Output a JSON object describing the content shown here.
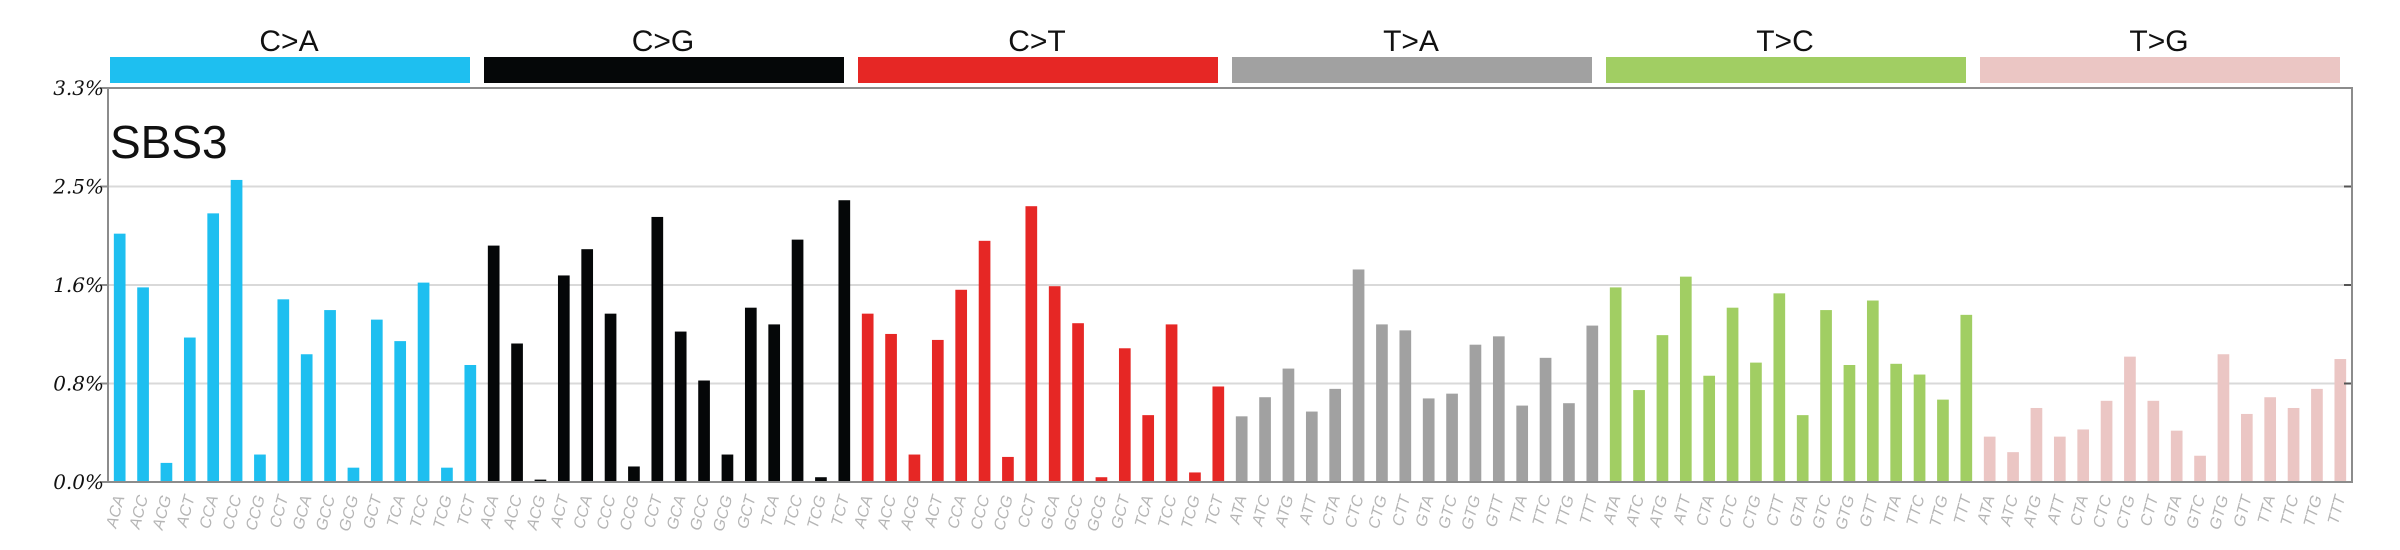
{
  "chart_data": {
    "type": "bar",
    "title": "SBS3",
    "ylim": [
      0,
      3.3
    ],
    "yticks": [
      {
        "value": 0.0,
        "label": "0.0%"
      },
      {
        "value": 0.825,
        "label": "0.8%"
      },
      {
        "value": 1.65,
        "label": "1.6%"
      },
      {
        "value": 2.475,
        "label": "2.5%"
      },
      {
        "value": 3.3,
        "label": "3.3%"
      }
    ],
    "grid": true,
    "groups": [
      {
        "name": "C>A",
        "color": "#1ebff0",
        "categories": [
          "ACA",
          "ACC",
          "ACG",
          "ACT",
          "CCA",
          "CCC",
          "CCG",
          "CCT",
          "GCA",
          "GCC",
          "GCG",
          "GCT",
          "TCA",
          "TCC",
          "TCG",
          "TCT"
        ],
        "values": [
          2.08,
          1.63,
          0.16,
          1.21,
          2.25,
          2.53,
          0.23,
          1.53,
          1.07,
          1.44,
          0.12,
          1.36,
          1.18,
          1.67,
          0.12,
          0.98
        ]
      },
      {
        "name": "C>G",
        "color": "#050708",
        "categories": [
          "ACA",
          "ACC",
          "ACG",
          "ACT",
          "CCA",
          "CCC",
          "CCG",
          "CCT",
          "GCA",
          "GCC",
          "GCG",
          "GCT",
          "TCA",
          "TCC",
          "TCG",
          "TCT"
        ],
        "values": [
          1.98,
          1.16,
          0.02,
          1.73,
          1.95,
          1.41,
          0.13,
          2.22,
          1.26,
          0.85,
          0.23,
          1.46,
          1.32,
          2.03,
          0.04,
          2.36
        ]
      },
      {
        "name": "C>T",
        "color": "#e62725",
        "categories": [
          "ACA",
          "ACC",
          "ACG",
          "ACT",
          "CCA",
          "CCC",
          "CCG",
          "CCT",
          "GCA",
          "GCC",
          "GCG",
          "GCT",
          "TCA",
          "TCC",
          "TCG",
          "TCT"
        ],
        "values": [
          1.41,
          1.24,
          0.23,
          1.19,
          1.61,
          2.02,
          0.21,
          2.31,
          1.64,
          1.33,
          0.04,
          1.12,
          0.56,
          1.32,
          0.08,
          0.8
        ]
      },
      {
        "name": "T>A",
        "color": "#a1a1a1",
        "categories": [
          "ATA",
          "ATC",
          "ATG",
          "ATT",
          "CTA",
          "CTC",
          "CTG",
          "CTT",
          "GTA",
          "GTC",
          "GTG",
          "GTT",
          "TTA",
          "TTC",
          "TTG",
          "TTT"
        ],
        "values": [
          0.55,
          0.71,
          0.95,
          0.59,
          0.78,
          1.78,
          1.32,
          1.27,
          0.7,
          0.74,
          1.15,
          1.22,
          0.64,
          1.04,
          0.66,
          1.31
        ]
      },
      {
        "name": "T>C",
        "color": "#a1ce63",
        "categories": [
          "ATA",
          "ATC",
          "ATG",
          "ATT",
          "CTA",
          "CTC",
          "CTG",
          "CTT",
          "GTA",
          "GTC",
          "GTG",
          "GTT",
          "TTA",
          "TTC",
          "TTG",
          "TTT"
        ],
        "values": [
          1.63,
          0.77,
          1.23,
          1.72,
          0.89,
          1.46,
          1.0,
          1.58,
          0.56,
          1.44,
          0.98,
          1.52,
          0.99,
          0.9,
          0.69,
          1.4
        ]
      },
      {
        "name": "T>G",
        "color": "#ebc6c4",
        "categories": [
          "ATA",
          "ATC",
          "ATG",
          "ATT",
          "CTA",
          "CTC",
          "CTG",
          "CTT",
          "GTA",
          "GTC",
          "GTG",
          "GTT",
          "TTA",
          "TTC",
          "TTG",
          "TTT"
        ],
        "values": [
          0.38,
          0.25,
          0.62,
          0.38,
          0.44,
          0.68,
          1.05,
          0.68,
          0.43,
          0.22,
          1.07,
          0.57,
          0.71,
          0.62,
          0.78,
          1.03
        ]
      }
    ]
  }
}
